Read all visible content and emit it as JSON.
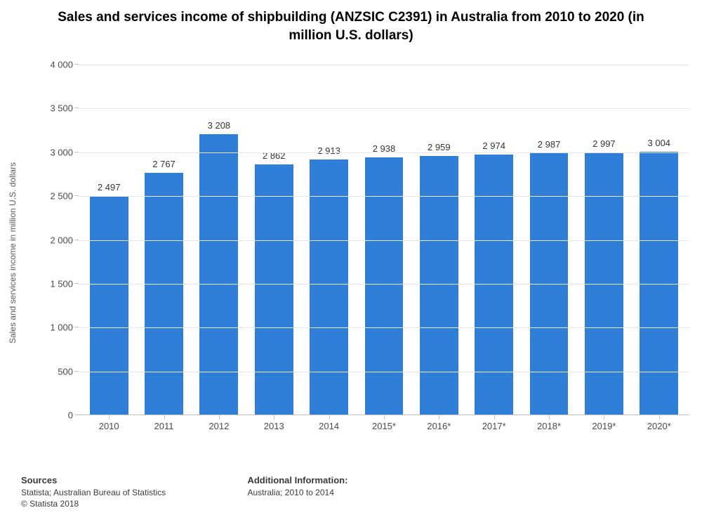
{
  "title": "Sales and services income of shipbuilding (ANZSIC C2391) in Australia from 2010 to 2020 (in million U.S. dollars)",
  "chart": {
    "type": "bar",
    "categories": [
      "2010",
      "2011",
      "2012",
      "2013",
      "2014",
      "2015*",
      "2016*",
      "2017*",
      "2018*",
      "2019*",
      "2020*"
    ],
    "values": [
      2497,
      2767,
      3208,
      2862,
      2913,
      2938,
      2959,
      2974,
      2987,
      2997,
      3004
    ],
    "value_labels": [
      "2 497",
      "2 767",
      "3 208",
      "2 862",
      "2 913",
      "2 938",
      "2 959",
      "2 974",
      "2 987",
      "2 997",
      "3 004"
    ],
    "bar_color": "#2f7ed8",
    "ylim": [
      0,
      4000
    ],
    "ytick_step": 500,
    "ytick_labels": [
      "0",
      "500",
      "1 000",
      "1 500",
      "2 000",
      "2 500",
      "3 000",
      "3 500",
      "4 000"
    ],
    "grid_color": "#e6e6e6",
    "axis_line_color": "#bfbfbf",
    "yaxis_title": "Sales and services income in million U.S. dollars",
    "title_fontsize": 19,
    "title_weight": "bold",
    "yaxis_title_fontsize": 12,
    "tick_fontsize": 13,
    "value_label_fontsize": 13,
    "bar_width": 0.7,
    "background_color": "#ffffff"
  },
  "footer": {
    "sources_heading": "Sources",
    "sources_line1": "Statista; Australian Bureau of Statistics",
    "sources_line2": "© Statista 2018",
    "additional_heading": "Additional Information:",
    "additional_line": "Australia; 2010 to 2014",
    "heading_fontsize": 13,
    "line_fontsize": 12,
    "text_color": "#3a3a3a"
  }
}
